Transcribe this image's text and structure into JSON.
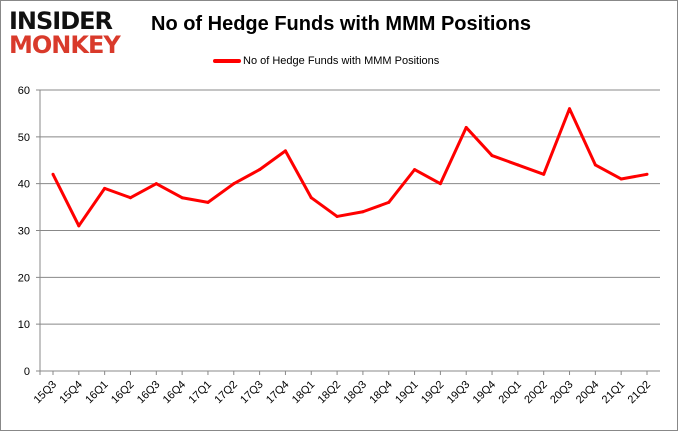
{
  "logo": {
    "line1": "INSIDER",
    "line2": "MONKEY"
  },
  "chart_data": {
    "type": "line",
    "title": "No of Hedge Funds with MMM Positions",
    "xlabel": "",
    "ylabel": "",
    "categories": [
      "15Q3",
      "15Q4",
      "16Q1",
      "16Q2",
      "16Q3",
      "16Q4",
      "17Q1",
      "17Q2",
      "17Q3",
      "17Q4",
      "18Q1",
      "18Q2",
      "18Q3",
      "18Q4",
      "19Q1",
      "19Q2",
      "19Q3",
      "19Q4",
      "20Q1",
      "20Q2",
      "20Q3",
      "20Q4",
      "21Q1",
      "21Q2"
    ],
    "series": [
      {
        "name": "No of Hedge Funds with MMM Positions",
        "color": "#ff0000",
        "values": [
          42,
          31,
          39,
          37,
          40,
          37,
          36,
          40,
          43,
          47,
          37,
          33,
          34,
          36,
          43,
          40,
          52,
          46,
          44,
          42,
          56,
          44,
          41,
          42
        ]
      }
    ],
    "ylim": [
      0,
      60
    ],
    "yticks": [
      0,
      10,
      20,
      30,
      40,
      50,
      60
    ],
    "grid": true,
    "legend": "top-center"
  }
}
